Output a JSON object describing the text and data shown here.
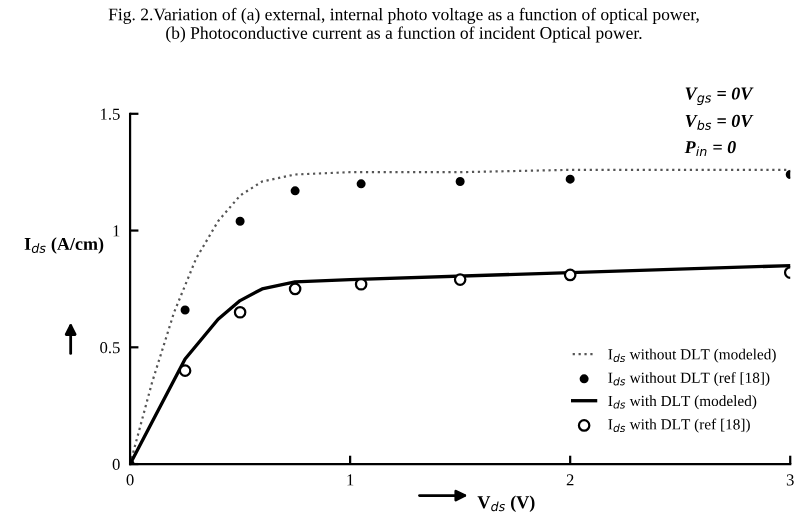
{
  "chart_data": {
    "type": "line",
    "title": "Fig. 2.Variation of (a) external, internal photo voltage as a function of optical power,\n(b) Photoconductive current as a function of incident Optical power.",
    "xlabel": "V$_{ds}$ (V)",
    "ylabel": "I$_{ds}$ (A/cm)",
    "annotations": [
      "V$_{gs}$ = 0V",
      "V$_{bs}$ = 0V",
      "P$_{in}$ = 0"
    ],
    "series": [
      {
        "name": "I$_{ds}$ without DLT (modeled)",
        "line_style": "dotted",
        "marker": "none",
        "color": "#555555",
        "x": [
          0,
          0.1,
          0.2,
          0.3,
          0.4,
          0.5,
          0.6,
          0.75,
          1,
          1.5,
          2,
          3
        ],
        "values": [
          0,
          0.35,
          0.65,
          0.88,
          1.04,
          1.15,
          1.21,
          1.24,
          1.25,
          1.25,
          1.26,
          1.26
        ]
      },
      {
        "name": "I$_{ds}$ without DLT (ref [18])",
        "type": "scatter",
        "marker": "circle",
        "color": "#000000",
        "x": [
          0,
          0.25,
          0.5,
          0.75,
          1.05,
          1.5,
          2,
          3
        ],
        "values": [
          0,
          0.66,
          1.04,
          1.17,
          1.2,
          1.21,
          1.22,
          1.24
        ]
      },
      {
        "name": "I$_{ds}$ with DLT (modeled)",
        "line_style": "solid",
        "marker": "none",
        "color": "#000000",
        "x": [
          0,
          0.1,
          0.25,
          0.4,
          0.5,
          0.6,
          0.75,
          1,
          2,
          3
        ],
        "values": [
          0,
          0.18,
          0.45,
          0.62,
          0.7,
          0.75,
          0.78,
          0.79,
          0.82,
          0.85
        ]
      },
      {
        "name": "I$_{ds}$ with DLT (ref [18])",
        "type": "scatter",
        "marker": "open circle",
        "color": "#000000",
        "x": [
          0.25,
          0.5,
          0.75,
          1.05,
          1.5,
          2,
          3
        ],
        "values": [
          0.4,
          0.65,
          0.75,
          0.77,
          0.79,
          0.81,
          0.82
        ]
      }
    ],
    "xlim": [
      0,
      3
    ],
    "ylim": [
      0,
      1.5
    ],
    "xticks": [
      0,
      1,
      2,
      3
    ],
    "yticks": [
      0,
      0.5,
      1,
      1.5
    ],
    "grid": false,
    "legend": "bottom right"
  }
}
